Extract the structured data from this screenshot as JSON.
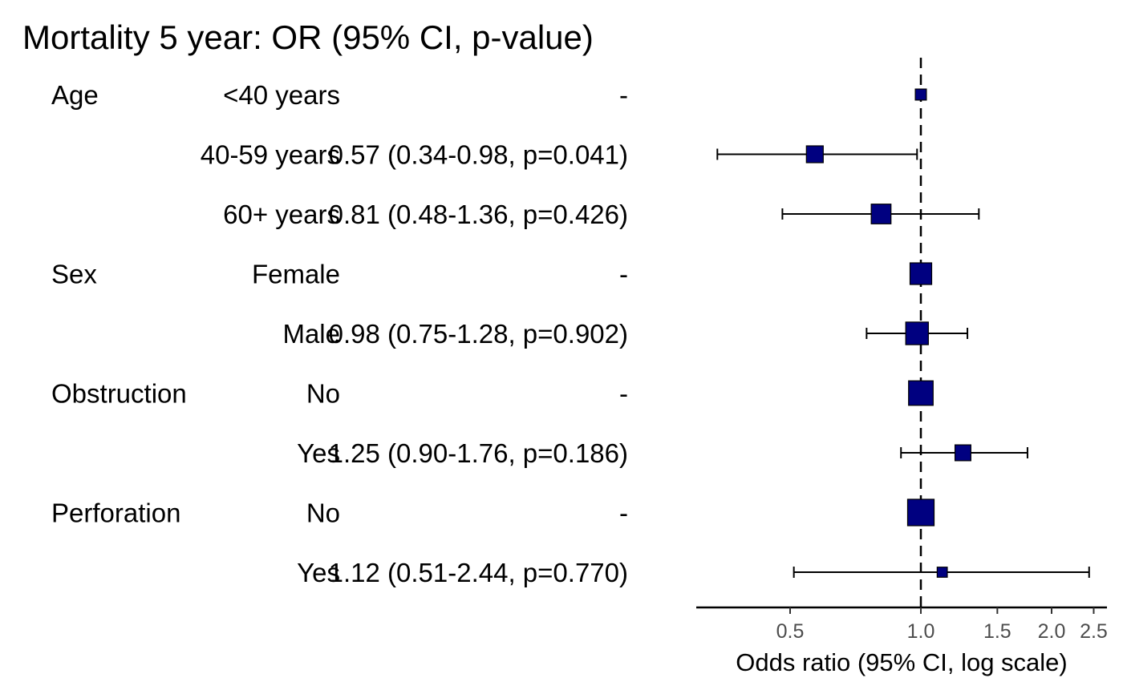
{
  "chart_data": {
    "type": "forest",
    "title": "Mortality 5 year: OR (95% CI, p-value)",
    "xlabel": "Odds ratio (95% CI, log scale)",
    "x_scale": "log",
    "xlim": [
      0.36,
      2.7
    ],
    "x_ticks": [
      0.5,
      1.0,
      1.5,
      2.0,
      2.5
    ],
    "x_tick_labels": [
      "0.5",
      "1.0",
      "1.5",
      "2.0",
      "2.5"
    ],
    "reference_line": 1.0,
    "marker_color": "#000080",
    "rows": [
      {
        "variable": "Age",
        "level": "<40 years",
        "label": "-",
        "or": 1.0,
        "lo": null,
        "hi": null,
        "weight": 0.2
      },
      {
        "variable": "",
        "level": "40-59 years",
        "label": "0.57 (0.34-0.98, p=0.041)",
        "or": 0.57,
        "lo": 0.34,
        "hi": 0.98,
        "weight": 0.5
      },
      {
        "variable": "",
        "level": "60+ years",
        "label": "0.81 (0.48-1.36, p=0.426)",
        "or": 0.81,
        "lo": 0.48,
        "hi": 1.36,
        "weight": 0.65
      },
      {
        "variable": "Sex",
        "level": "Female",
        "label": "-",
        "or": 1.0,
        "lo": null,
        "hi": null,
        "weight": 0.75
      },
      {
        "variable": "",
        "level": "Male",
        "label": "0.98 (0.75-1.28, p=0.902)",
        "or": 0.98,
        "lo": 0.75,
        "hi": 1.28,
        "weight": 0.8
      },
      {
        "variable": "Obstruction",
        "level": "No",
        "label": "-",
        "or": 1.0,
        "lo": null,
        "hi": null,
        "weight": 0.9
      },
      {
        "variable": "",
        "level": "Yes",
        "label": "1.25 (0.90-1.76, p=0.186)",
        "or": 1.25,
        "lo": 0.9,
        "hi": 1.76,
        "weight": 0.45
      },
      {
        "variable": "Perforation",
        "level": "No",
        "label": "-",
        "or": 1.0,
        "lo": null,
        "hi": null,
        "weight": 1.0
      },
      {
        "variable": "",
        "level": "Yes",
        "label": "1.12 (0.51-2.44, p=0.770)",
        "or": 1.12,
        "lo": 0.51,
        "hi": 2.44,
        "weight": 0.15
      }
    ]
  }
}
